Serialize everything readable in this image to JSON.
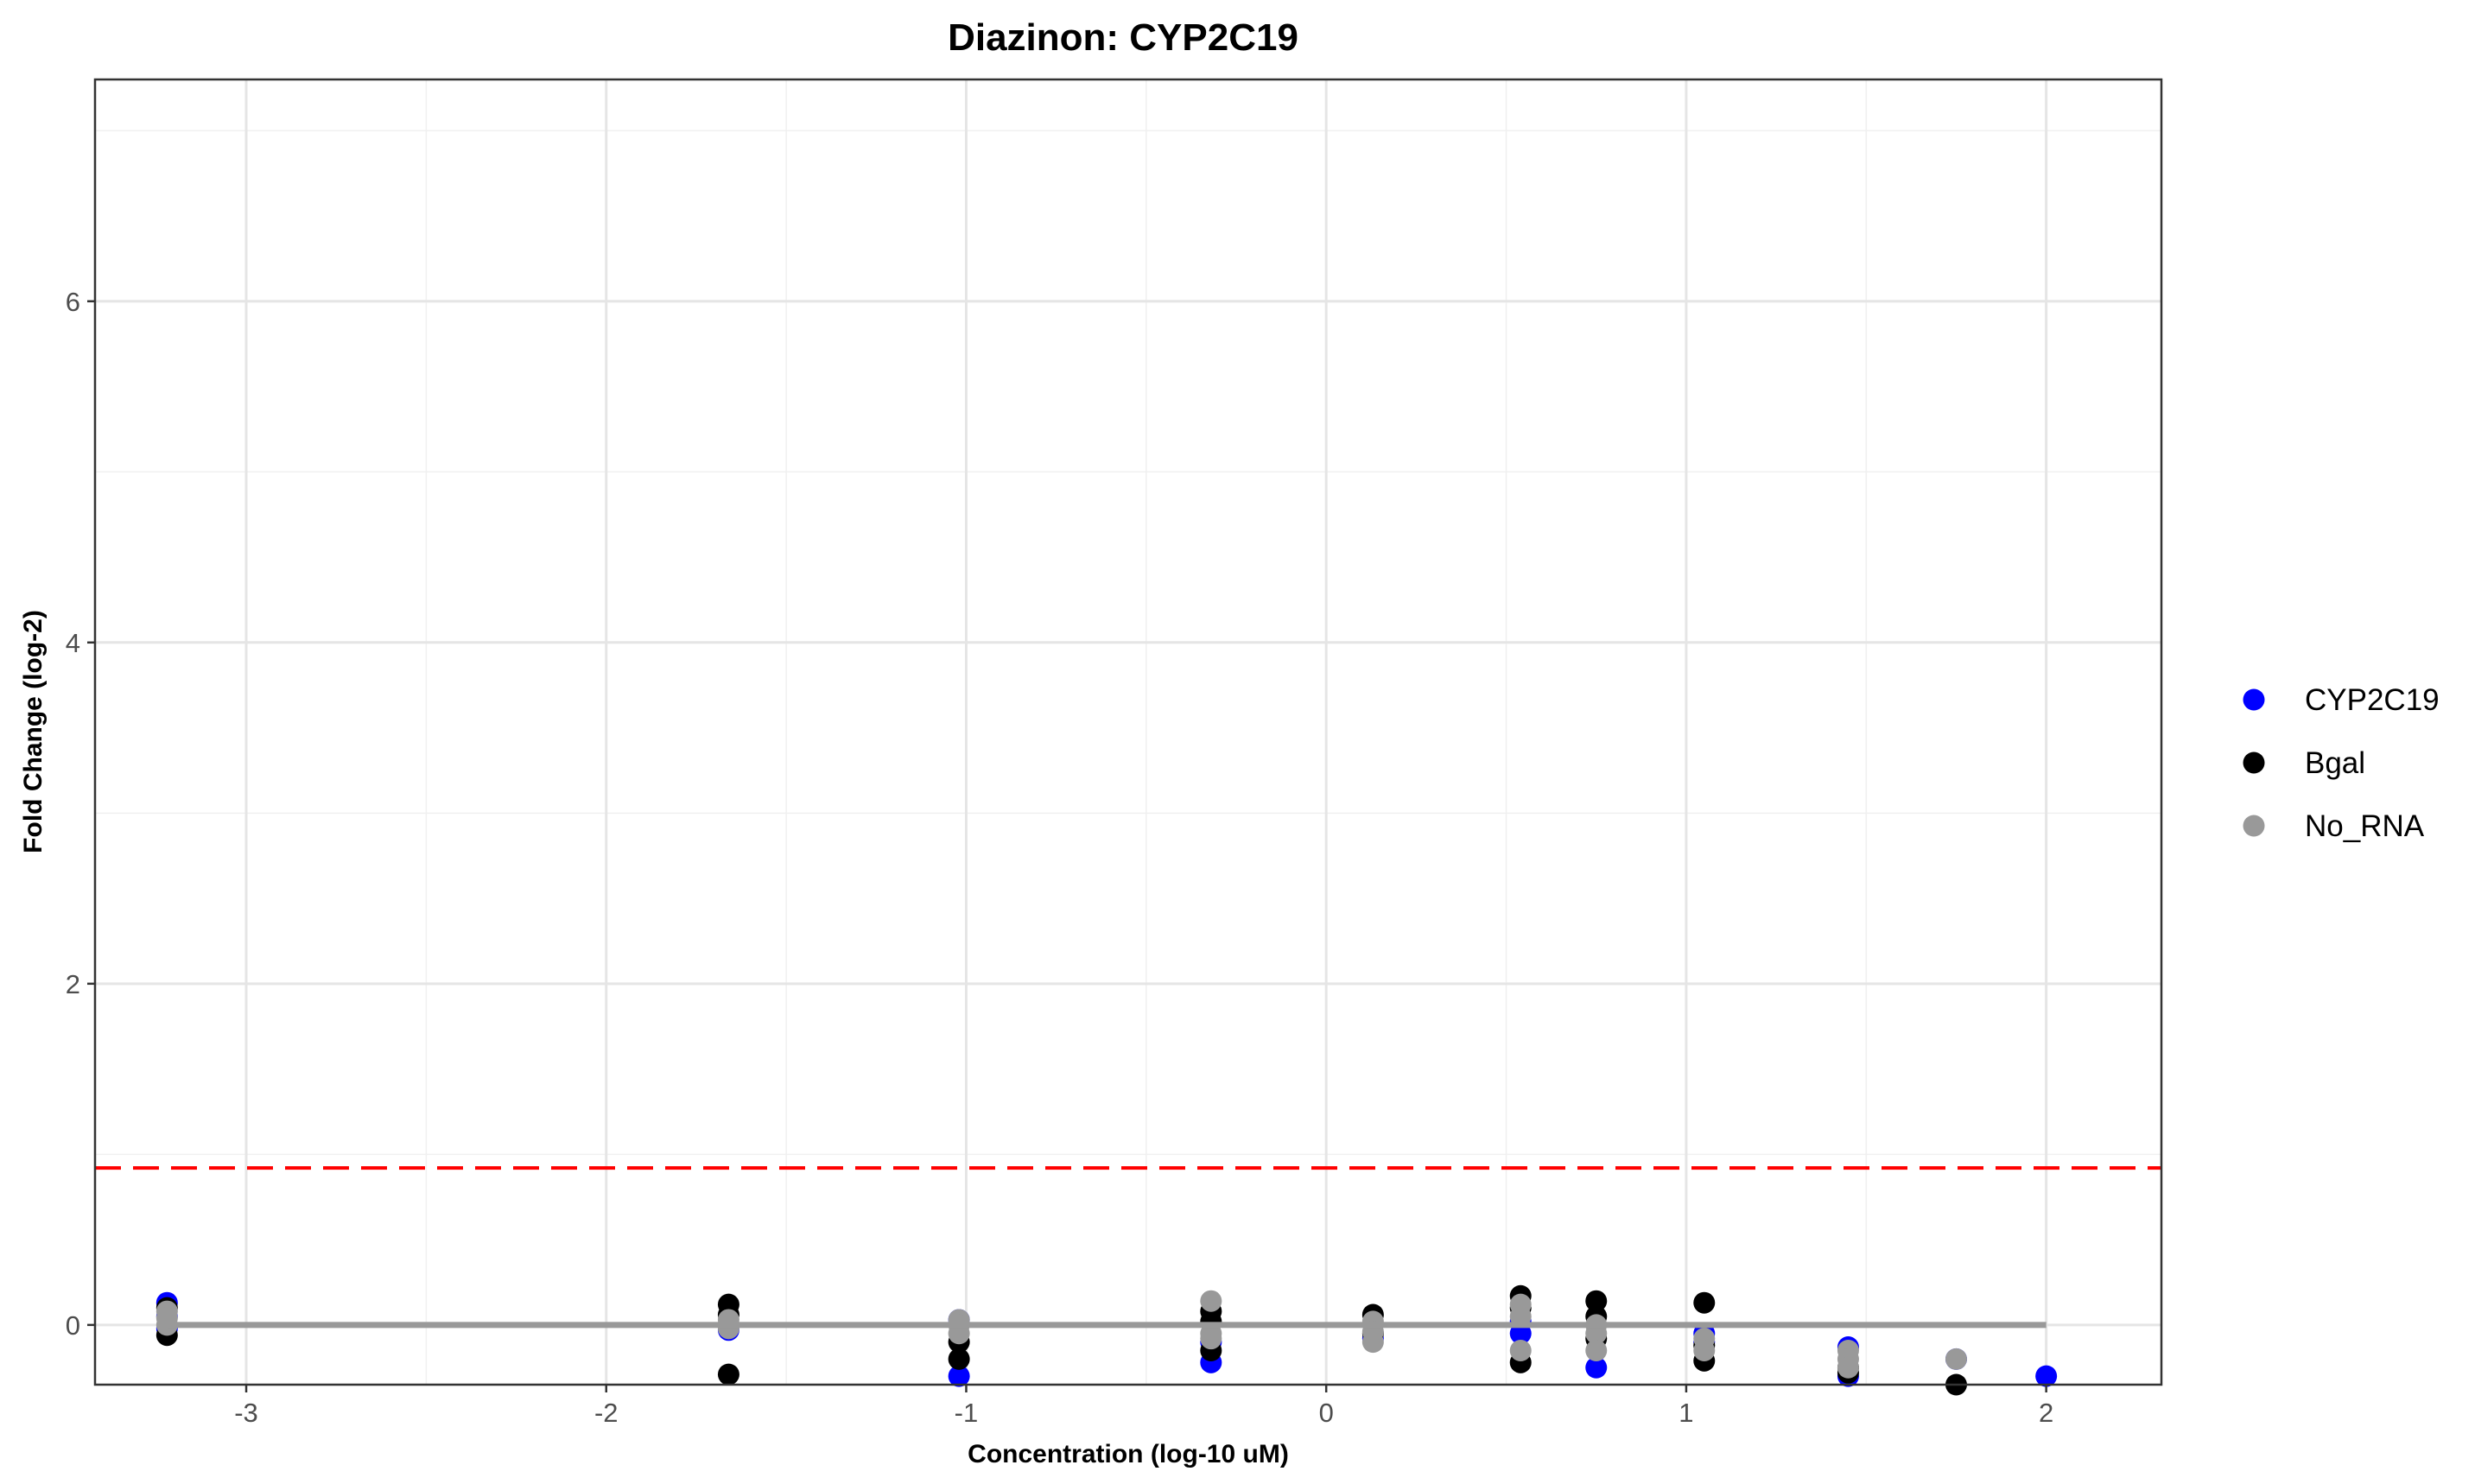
{
  "chart_data": {
    "type": "scatter",
    "title": "Diazinon: CYP2C19",
    "xlabel": "Concentration (log-10 uM)",
    "ylabel": "Fold Change (log-2)",
    "xlim": [
      -3.42,
      2.32
    ],
    "ylim": [
      -0.35,
      7.3
    ],
    "x_ticks": [
      -3,
      -2,
      -1,
      0,
      1,
      2
    ],
    "y_ticks": [
      0,
      2,
      4,
      6
    ],
    "grid": true,
    "legend_position": "right",
    "threshold_line": {
      "y": 0.92,
      "color": "#ff0000",
      "style": "dashed"
    },
    "fit_line": {
      "x": [
        -3.22,
        2.0
      ],
      "y": [
        0,
        0
      ],
      "color": "#999999"
    },
    "series": [
      {
        "name": "CYP2C19",
        "color": "#0000ff",
        "points": [
          [
            -3.22,
            0.13
          ],
          [
            -3.22,
            0.05
          ],
          [
            -3.22,
            -0.02
          ],
          [
            -1.66,
            0.0
          ],
          [
            -1.66,
            -0.03
          ],
          [
            -1.02,
            -0.3
          ],
          [
            -1.02,
            0.03
          ],
          [
            -0.32,
            -0.22
          ],
          [
            -0.32,
            -0.1
          ],
          [
            0.13,
            -0.08
          ],
          [
            0.54,
            -0.05
          ],
          [
            0.54,
            0.02
          ],
          [
            0.75,
            -0.25
          ],
          [
            1.05,
            -0.05
          ],
          [
            1.05,
            -0.1
          ],
          [
            1.45,
            -0.3
          ],
          [
            1.45,
            -0.13
          ],
          [
            1.75,
            -0.2
          ],
          [
            2.0,
            -0.3
          ]
        ]
      },
      {
        "name": "Bgal",
        "color": "#000000",
        "points": [
          [
            -3.22,
            -0.06
          ],
          [
            -3.22,
            0.1
          ],
          [
            -1.66,
            0.12
          ],
          [
            -1.66,
            -0.29
          ],
          [
            -1.66,
            0.06
          ],
          [
            -1.02,
            -0.2
          ],
          [
            -1.02,
            -0.1
          ],
          [
            -0.32,
            0.08
          ],
          [
            -0.32,
            -0.15
          ],
          [
            -0.32,
            0.02
          ],
          [
            0.13,
            0.06
          ],
          [
            0.13,
            -0.05
          ],
          [
            0.54,
            0.17
          ],
          [
            0.54,
            -0.22
          ],
          [
            0.54,
            0.1
          ],
          [
            0.75,
            0.14
          ],
          [
            0.75,
            0.05
          ],
          [
            0.75,
            -0.08
          ],
          [
            1.05,
            0.13
          ],
          [
            1.05,
            -0.21
          ],
          [
            1.05,
            -0.12
          ],
          [
            1.45,
            -0.25
          ],
          [
            1.45,
            -0.28
          ],
          [
            1.75,
            -0.35
          ]
        ]
      },
      {
        "name": "No_RNA",
        "color": "#999999",
        "points": [
          [
            -3.22,
            0.08
          ],
          [
            -3.22,
            0.0
          ],
          [
            -3.22,
            0.04
          ],
          [
            -1.66,
            0.03
          ],
          [
            -1.66,
            -0.02
          ],
          [
            -1.02,
            0.03
          ],
          [
            -1.02,
            -0.05
          ],
          [
            -1.02,
            0.0
          ],
          [
            -0.32,
            0.14
          ],
          [
            -0.32,
            -0.08
          ],
          [
            -0.32,
            -0.05
          ],
          [
            0.13,
            0.02
          ],
          [
            0.13,
            -0.1
          ],
          [
            0.13,
            -0.04
          ],
          [
            0.54,
            0.12
          ],
          [
            0.54,
            -0.15
          ],
          [
            0.54,
            0.05
          ],
          [
            0.75,
            -0.05
          ],
          [
            0.75,
            -0.15
          ],
          [
            0.75,
            0.0
          ],
          [
            1.05,
            -0.08
          ],
          [
            1.05,
            -0.15
          ],
          [
            1.45,
            -0.15
          ],
          [
            1.45,
            -0.2
          ],
          [
            1.45,
            -0.25
          ],
          [
            1.75,
            -0.2
          ]
        ]
      }
    ]
  }
}
